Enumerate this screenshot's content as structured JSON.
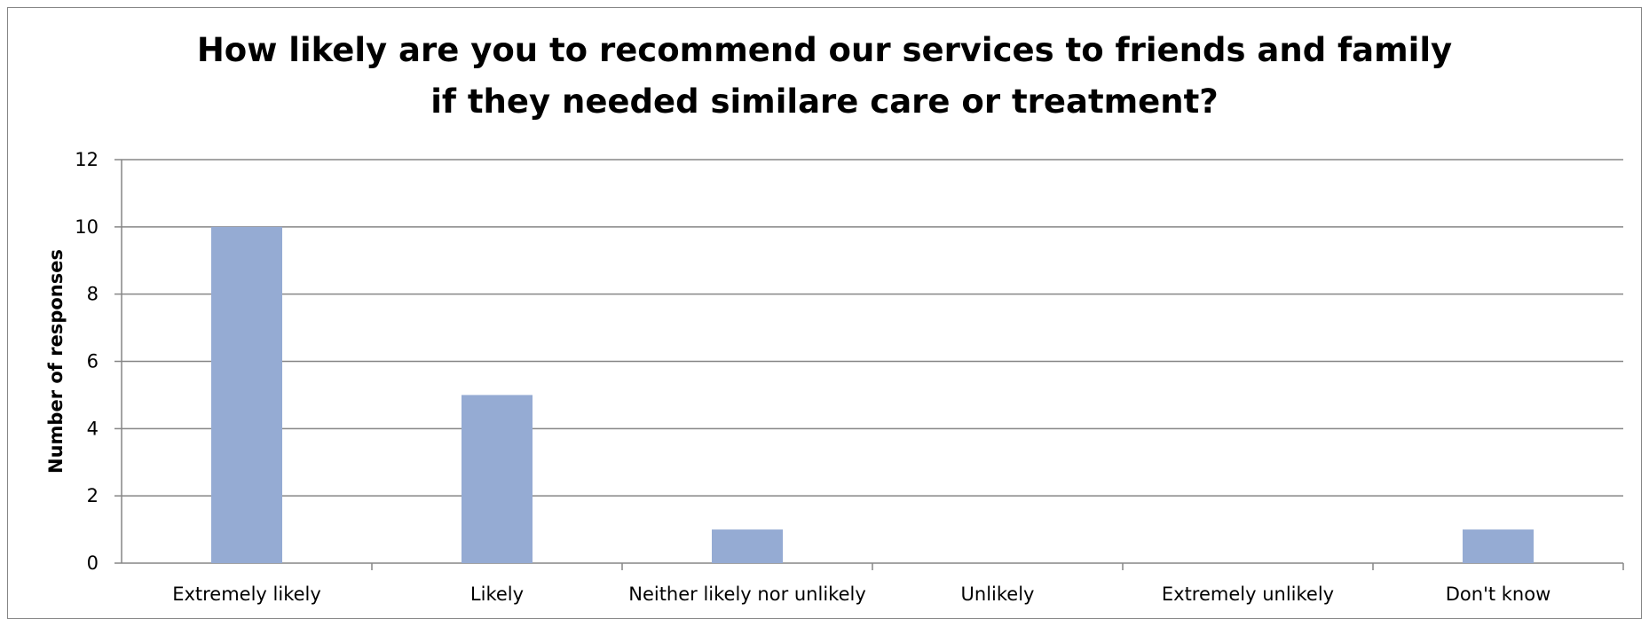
{
  "chart_data": {
    "type": "bar",
    "title": "How likely are you to recommend our services to friends and family if they needed similare care or treatment?",
    "xlabel": "",
    "ylabel": "Number of responses",
    "categories": [
      "Extremely likely",
      "Likely",
      "Neither likely nor unlikely",
      "Unlikely",
      "Extremely unlikely",
      "Don't know"
    ],
    "values": [
      10,
      5,
      1,
      0,
      0,
      1
    ],
    "ylim": [
      0,
      12
    ],
    "yticks": [
      "0",
      "2",
      "4",
      "6",
      "8",
      "10",
      "12"
    ],
    "grid": true,
    "legend": "none",
    "colors": {
      "bar": "#95abd3",
      "gridline": "#868686",
      "frame": "#868686"
    }
  }
}
